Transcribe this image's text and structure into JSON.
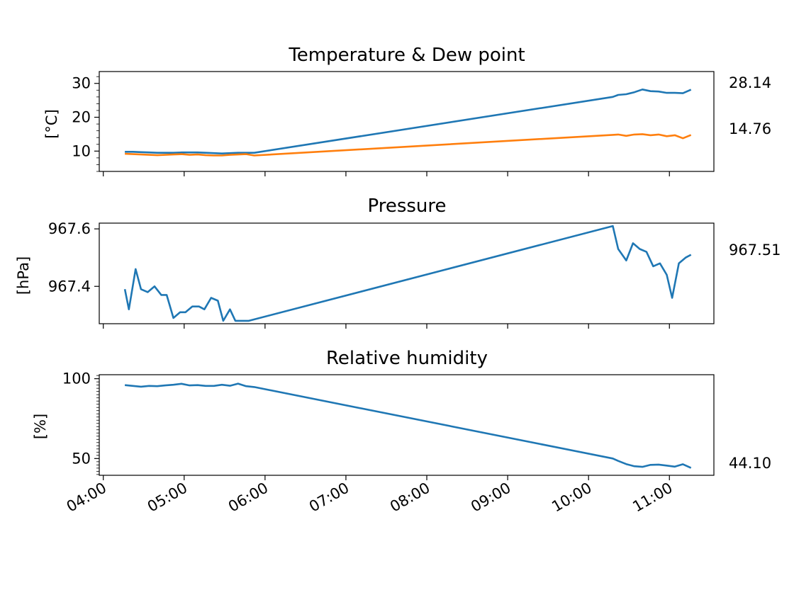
{
  "chart_data": [
    {
      "type": "line",
      "title": "Temperature & Dew point",
      "ylabel": "[°C]",
      "ylim": [
        4,
        33.5
      ],
      "yticks": [
        10,
        20,
        30
      ],
      "yminor": 2,
      "last_labels": [
        "28.14",
        "14.76"
      ],
      "series": [
        {
          "color": "#1f77b4",
          "x": [
            "04:16",
            "04:22",
            "04:28",
            "04:34",
            "04:40",
            "04:46",
            "04:52",
            "04:58",
            "05:04",
            "05:10",
            "05:16",
            "05:22",
            "05:28",
            "05:34",
            "05:40",
            "05:46",
            "05:52",
            "10:18",
            "10:22",
            "10:28",
            "10:34",
            "10:40",
            "10:46",
            "10:52",
            "10:58",
            "11:04",
            "11:10",
            "11:16"
          ],
          "y": [
            9.8,
            9.8,
            9.7,
            9.6,
            9.5,
            9.5,
            9.5,
            9.6,
            9.6,
            9.6,
            9.5,
            9.4,
            9.3,
            9.4,
            9.5,
            9.5,
            9.5,
            26.0,
            26.6,
            26.8,
            27.4,
            28.2,
            27.7,
            27.6,
            27.2,
            27.2,
            27.1,
            28.14
          ]
        },
        {
          "color": "#ff7f0e",
          "x": [
            "04:16",
            "04:22",
            "04:28",
            "04:34",
            "04:40",
            "04:46",
            "04:52",
            "04:58",
            "05:04",
            "05:10",
            "05:16",
            "05:22",
            "05:28",
            "05:34",
            "05:40",
            "05:46",
            "05:52",
            "10:18",
            "10:22",
            "10:28",
            "10:34",
            "10:40",
            "10:46",
            "10:52",
            "10:58",
            "11:04",
            "11:10",
            "11:16"
          ],
          "y": [
            9.2,
            9.1,
            9.0,
            8.9,
            8.8,
            8.9,
            9.0,
            9.1,
            8.9,
            9.0,
            8.8,
            8.7,
            8.7,
            8.9,
            9.0,
            9.1,
            8.7,
            14.8,
            14.9,
            14.5,
            14.9,
            15.0,
            14.7,
            14.9,
            14.4,
            14.7,
            13.8,
            14.76
          ]
        }
      ]
    },
    {
      "type": "line",
      "title": "Pressure",
      "ylabel": "[hPa]",
      "ylim": [
        967.27,
        967.62
      ],
      "yticks": [
        967.4,
        967.6
      ],
      "ytick_labels": [
        "967.4",
        "967.6"
      ],
      "yminor": 0,
      "last_labels": [
        "967.51"
      ],
      "series": [
        {
          "color": "#1f77b4",
          "x": [
            "04:16",
            "04:19",
            "04:24",
            "04:28",
            "04:33",
            "04:38",
            "04:43",
            "04:47",
            "04:52",
            "04:57",
            "05:01",
            "05:06",
            "05:11",
            "05:15",
            "05:20",
            "05:25",
            "05:29",
            "05:34",
            "05:38",
            "05:43",
            "05:48",
            "10:18",
            "10:22",
            "10:28",
            "10:33",
            "10:38",
            "10:43",
            "10:48",
            "10:53",
            "10:58",
            "11:02",
            "11:07",
            "11:12",
            "11:16"
          ],
          "y": [
            967.39,
            967.32,
            967.46,
            967.39,
            967.38,
            967.4,
            967.37,
            967.37,
            967.29,
            967.31,
            967.31,
            967.33,
            967.33,
            967.32,
            967.36,
            967.35,
            967.28,
            967.32,
            967.28,
            967.28,
            967.28,
            967.61,
            967.53,
            967.49,
            967.55,
            967.53,
            967.52,
            967.47,
            967.48,
            967.44,
            967.36,
            967.48,
            967.5,
            967.51
          ]
        }
      ]
    },
    {
      "type": "line",
      "title": "Relative humidity",
      "ylabel": "[%]",
      "ylim": [
        39.5,
        102.5
      ],
      "yticks": [
        50,
        100
      ],
      "yminor": 2,
      "last_labels": [
        "44.10"
      ],
      "series": [
        {
          "color": "#1f77b4",
          "x": [
            "04:16",
            "04:22",
            "04:28",
            "04:34",
            "04:40",
            "04:46",
            "04:52",
            "04:58",
            "05:04",
            "05:10",
            "05:16",
            "05:22",
            "05:28",
            "05:34",
            "05:40",
            "05:46",
            "05:52",
            "10:18",
            "10:22",
            "10:28",
            "10:34",
            "10:40",
            "10:46",
            "10:52",
            "10:58",
            "11:04",
            "11:10",
            "11:16"
          ],
          "y": [
            96.0,
            95.5,
            95.0,
            95.5,
            95.3,
            95.8,
            96.2,
            96.8,
            95.8,
            96.0,
            95.5,
            95.5,
            96.2,
            95.6,
            96.9,
            95.3,
            94.8,
            50.0,
            48.5,
            46.5,
            45.2,
            44.8,
            46.0,
            46.2,
            45.6,
            44.9,
            46.4,
            44.1
          ]
        }
      ]
    }
  ],
  "x_axis": {
    "xlim": [
      "03:57",
      "11:33"
    ],
    "ticks": [
      "04:00",
      "05:00",
      "06:00",
      "07:00",
      "08:00",
      "09:00",
      "10:00",
      "11:00"
    ]
  }
}
